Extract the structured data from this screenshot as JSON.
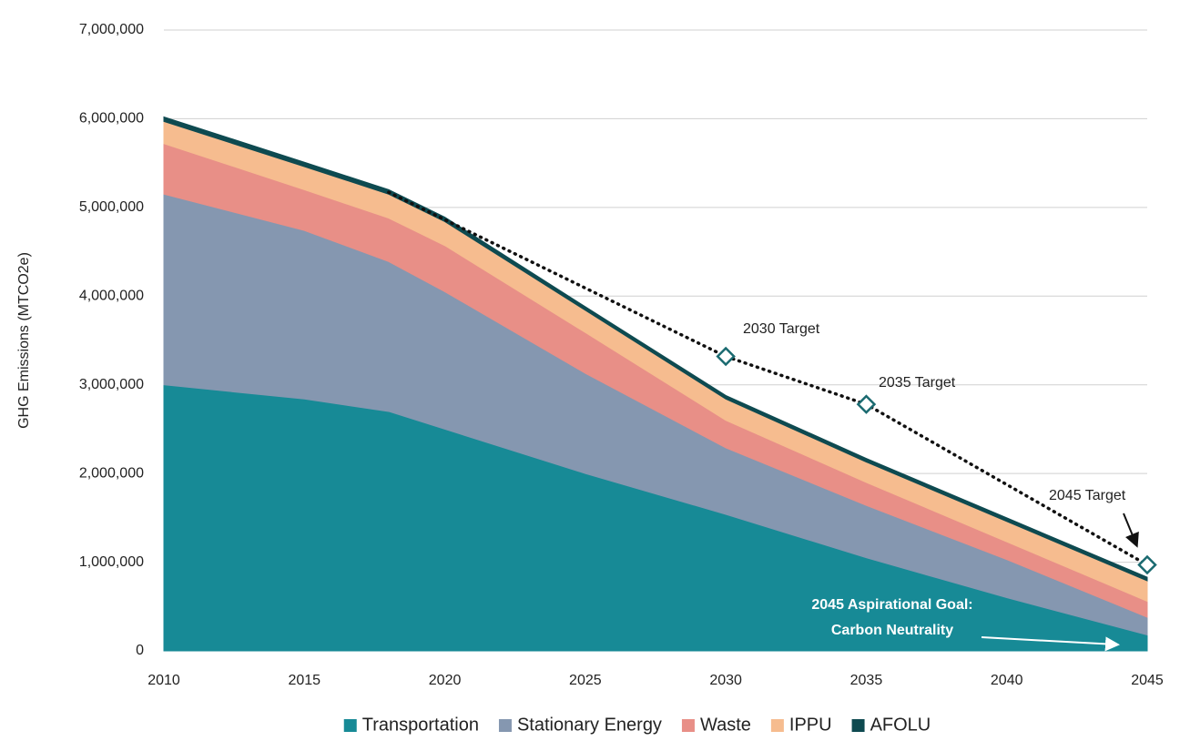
{
  "chart_data": {
    "type": "area",
    "stacked": true,
    "y_label": "GHG Emissions (MTCO2e)",
    "x": [
      2010,
      2015,
      2018,
      2020,
      2025,
      2030,
      2035,
      2040,
      2045
    ],
    "xlim": [
      2010,
      2045
    ],
    "xticks": [
      2010,
      2015,
      2020,
      2025,
      2030,
      2035,
      2040,
      2045
    ],
    "ylim": [
      0,
      7000000
    ],
    "yticks": [
      0,
      {
        "value": 1000000,
        "label": "1,000,000"
      },
      {
        "value": 2000000,
        "label": "2,000,000"
      },
      {
        "value": 3000000,
        "label": "3,000,000"
      },
      {
        "value": 4000000,
        "label": "4,000,000"
      },
      {
        "value": 5000000,
        "label": "5,000,000"
      },
      {
        "value": 6000000,
        "label": "6,000,000"
      },
      {
        "value": 7000000,
        "label": "7,000,000"
      }
    ],
    "grid": true,
    "legend": "bottom",
    "series": [
      {
        "name": "Transportation",
        "color": "#178a96",
        "values": [
          3000000,
          2840000,
          2700000,
          2500000,
          2000000,
          1540000,
          1050000,
          600000,
          180000
        ]
      },
      {
        "name": "Stationary Energy",
        "color": "#8597b0",
        "values": [
          2150000,
          1900000,
          1690000,
          1550000,
          1130000,
          750000,
          590000,
          430000,
          200000
        ]
      },
      {
        "name": "Waste",
        "color": "#e88f87",
        "values": [
          570000,
          460000,
          490000,
          520000,
          460000,
          310000,
          260000,
          200000,
          180000
        ]
      },
      {
        "name": "IPPU",
        "color": "#f6bc8f",
        "values": [
          250000,
          260000,
          270000,
          270000,
          250000,
          240000,
          230000,
          230000,
          230000
        ]
      },
      {
        "name": "AFOLU",
        "color": "#0e4a50",
        "values": [
          50000,
          50000,
          50000,
          50000,
          40000,
          40000,
          40000,
          40000,
          40000
        ]
      }
    ],
    "target": {
      "x": [
        2018,
        2030,
        2035,
        2045
      ],
      "values": [
        5170000,
        3320000,
        2780000,
        970000
      ],
      "color": "#111111",
      "marker_color": "#1a6a70"
    },
    "annotations": [
      {
        "text": "2030 Target"
      },
      {
        "text": "2035 Target"
      },
      {
        "text": "2045 Target"
      },
      {
        "text": "2045 Aspirational Goal:"
      },
      {
        "text": "Carbon Neutrality"
      }
    ]
  }
}
